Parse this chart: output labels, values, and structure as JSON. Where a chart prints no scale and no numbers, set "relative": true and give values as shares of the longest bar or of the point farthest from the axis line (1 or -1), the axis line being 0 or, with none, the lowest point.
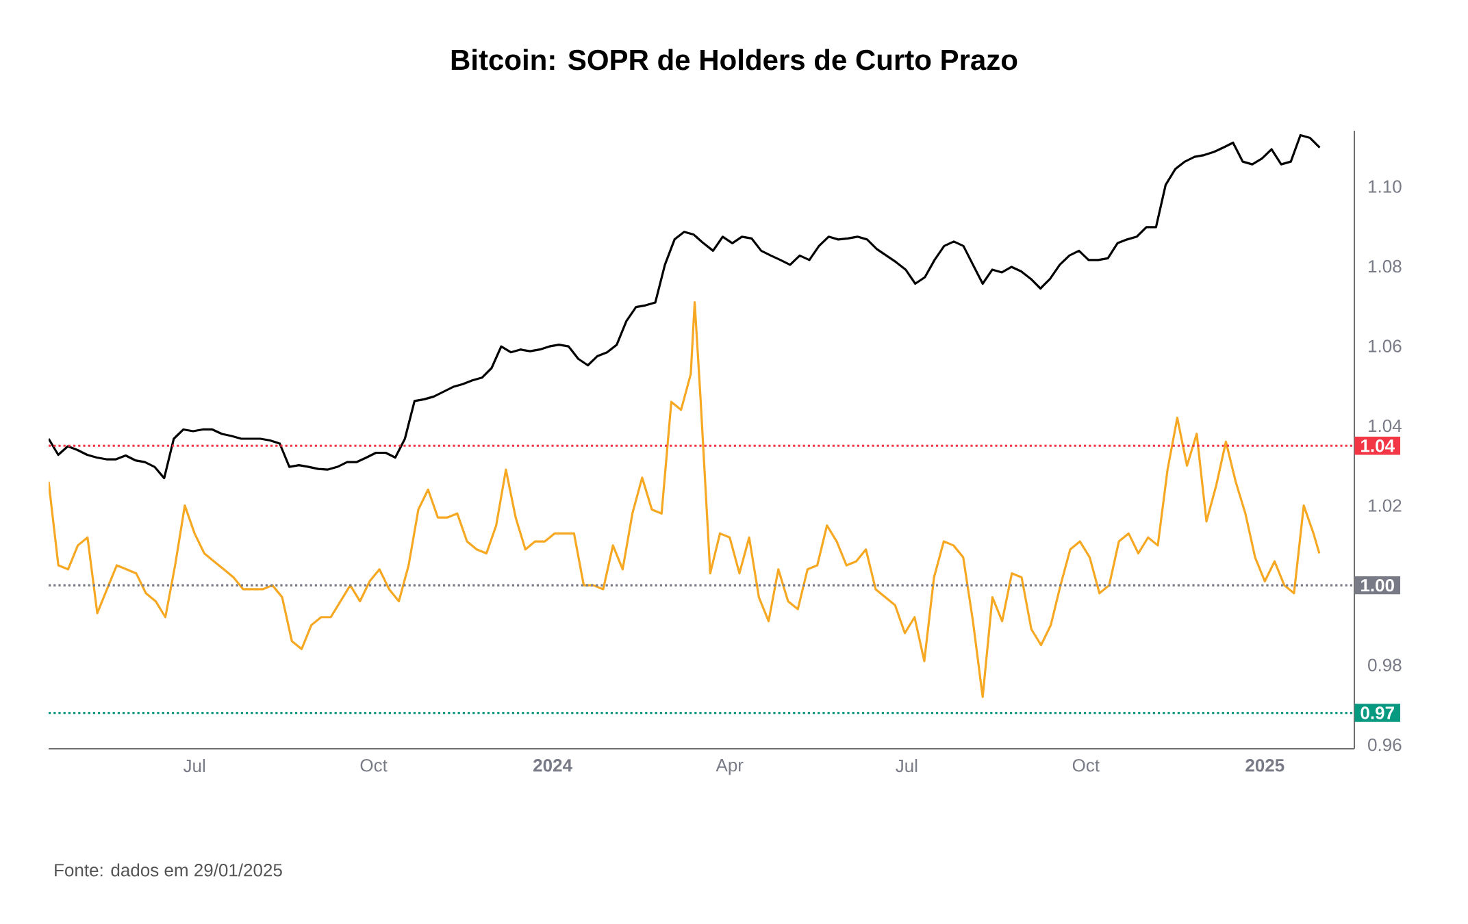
{
  "chart_data": [
    {
      "type": "line",
      "relative": true,
      "categories": [
        null,
        null,
        null,
        null,
        null,
        null,
        null,
        null,
        null,
        null,
        null,
        null,
        null,
        null,
        null,
        null,
        null,
        null,
        null,
        null,
        null,
        null,
        null,
        null,
        null,
        null,
        null,
        null,
        null,
        null,
        null,
        null,
        null,
        null,
        null,
        null,
        null,
        null,
        null,
        null,
        null,
        null,
        null,
        null,
        null,
        null,
        null,
        null,
        null,
        null,
        null,
        null,
        null,
        null,
        null,
        null,
        null,
        null,
        null,
        null,
        null,
        null,
        null,
        null,
        null,
        null,
        null,
        null,
        null,
        null,
        null,
        null,
        null,
        null,
        null,
        null,
        null,
        null,
        null,
        null,
        null,
        null,
        null,
        null,
        null,
        null,
        null,
        null,
        null,
        null,
        null,
        null,
        null,
        null,
        null,
        null,
        null,
        null,
        null,
        null,
        null,
        null,
        null,
        null,
        null,
        null,
        null,
        null,
        null,
        null,
        null,
        null,
        null,
        null,
        null,
        null,
        null,
        null,
        null,
        null,
        null,
        null,
        null,
        null,
        null,
        null,
        null,
        null,
        null,
        null,
        null,
        null,
        null
      ],
      "series": [
        {
          "color": "#000000",
          "values": [
            0.115,
            0.068,
            0.093,
            0.082,
            0.068,
            0.06,
            0.055,
            0.055,
            0.066,
            0.052,
            0.047,
            0.033,
            0,
            0.115,
            0.142,
            0.137,
            0.142,
            0.142,
            0.129,
            0.123,
            0.115,
            0.115,
            0.115,
            0.11,
            0.101,
            0.033,
            0.038,
            0.033,
            0.027,
            0.025,
            0.033,
            0.047,
            0.047,
            0.06,
            0.074,
            0.074,
            0.06,
            0.115,
            0.225,
            0.23,
            0.238,
            0.252,
            0.266,
            0.274,
            0.285,
            0.293,
            0.321,
            0.384,
            0.367,
            0.375,
            0.37,
            0.375,
            0.384,
            0.389,
            0.384,
            0.348,
            0.329,
            0.356,
            0.367,
            0.389,
            0.458,
            0.499,
            0.504,
            0.512,
            0.622,
            0.696,
            0.718,
            0.71,
            0.685,
            0.663,
            0.704,
            0.685,
            0.704,
            0.699,
            0.663,
            0.649,
            0.636,
            0.622,
            0.649,
            0.636,
            0.677,
            0.704,
            0.696,
            0.699,
            0.704,
            0.696,
            0.668,
            0.649,
            0.63,
            0.608,
            0.567,
            0.586,
            0.636,
            0.677,
            0.69,
            0.677,
            0.622,
            0.567,
            0.608,
            0.6,
            0.616,
            0.603,
            0.581,
            0.553,
            0.581,
            0.622,
            0.649,
            0.663,
            0.636,
            0.636,
            0.641,
            0.685,
            0.696,
            0.704,
            0.732,
            0.732,
            0.855,
            0.901,
            0.923,
            0.937,
            0.942,
            0.951,
            0.964,
            0.978,
            0.923,
            0.915,
            0.932,
            0.959,
            0.915,
            0.923,
            1,
            0.992,
            0.964
          ]
        }
      ]
    },
    {
      "type": "line",
      "title": "Bitcoin: SOPR de Holders de Curto Prazo",
      "annotations": [
        "Fonte: dados em 29/01/2025"
      ],
      "x": [
        "2023-04-17",
        "2023-04-22",
        "2023-04-27",
        "2023-05-02",
        "2023-05-07",
        "2023-05-12",
        "2023-05-17",
        "2023-05-22",
        "2023-05-27",
        "2023-06-01",
        "2023-06-06",
        "2023-06-11",
        "2023-06-16",
        "2023-06-21",
        "2023-06-26",
        "2023-07-01",
        "2023-07-06",
        "2023-07-11",
        "2023-07-16",
        "2023-07-21",
        "2023-07-26",
        "2023-07-31",
        "2023-08-05",
        "2023-08-10",
        "2023-08-15",
        "2023-08-20",
        "2023-08-25",
        "2023-08-30",
        "2023-09-04",
        "2023-09-09",
        "2023-09-14",
        "2023-09-19",
        "2023-09-24",
        "2023-09-29",
        "2023-10-04",
        "2023-10-09",
        "2023-10-14",
        "2023-10-19",
        "2023-10-24",
        "2023-10-29",
        "2023-11-03",
        "2023-11-08",
        "2023-11-13",
        "2023-11-18",
        "2023-11-23",
        "2023-11-28",
        "2023-12-03",
        "2023-12-08",
        "2023-12-13",
        "2023-12-18",
        "2023-12-23",
        "2023-12-28",
        "2024-01-02",
        "2024-01-07",
        "2024-01-12",
        "2024-01-17",
        "2024-01-22",
        "2024-01-27",
        "2024-02-01",
        "2024-02-06",
        "2024-02-11",
        "2024-02-16",
        "2024-02-21",
        "2024-02-26",
        "2024-03-02",
        "2024-03-07",
        "2024-03-12",
        "2024-03-14",
        "2024-03-17",
        "2024-03-22",
        "2024-03-27",
        "2024-04-01",
        "2024-04-06",
        "2024-04-11",
        "2024-04-16",
        "2024-04-21",
        "2024-04-26",
        "2024-05-01",
        "2024-05-06",
        "2024-05-11",
        "2024-05-16",
        "2024-05-21",
        "2024-05-26",
        "2024-05-31",
        "2024-06-05",
        "2024-06-10",
        "2024-06-15",
        "2024-06-20",
        "2024-06-25",
        "2024-06-30",
        "2024-07-05",
        "2024-07-10",
        "2024-07-15",
        "2024-07-20",
        "2024-07-25",
        "2024-07-30",
        "2024-08-04",
        "2024-08-09",
        "2024-08-14",
        "2024-08-19",
        "2024-08-24",
        "2024-08-29",
        "2024-09-03",
        "2024-09-08",
        "2024-09-13",
        "2024-09-18",
        "2024-09-23",
        "2024-09-28",
        "2024-10-03",
        "2024-10-08",
        "2024-10-13",
        "2024-10-18",
        "2024-10-23",
        "2024-10-28",
        "2024-11-02",
        "2024-11-07",
        "2024-11-12",
        "2024-11-17",
        "2024-11-22",
        "2024-11-27",
        "2024-12-02",
        "2024-12-07",
        "2024-12-12",
        "2024-12-17",
        "2024-12-22",
        "2024-12-27",
        "2025-01-01",
        "2025-01-06",
        "2025-01-11",
        "2025-01-16",
        "2025-01-21",
        "2025-01-26",
        "2025-01-29"
      ],
      "series": [
        {
          "color": "#f7a823",
          "values": [
            1.026,
            1.005,
            1.004,
            1.01,
            1.012,
            0.993,
            0.999,
            1.005,
            1.004,
            1.003,
            0.998,
            0.996,
            0.992,
            1.005,
            1.02,
            1.013,
            1.008,
            1.006,
            1.004,
            1.002,
            0.999,
            0.999,
            0.999,
            1.0,
            0.997,
            0.986,
            0.984,
            0.99,
            0.992,
            0.992,
            0.996,
            1.0,
            0.996,
            1.001,
            1.004,
            0.999,
            0.996,
            1.005,
            1.019,
            1.024,
            1.017,
            1.017,
            1.018,
            1.011,
            1.009,
            1.008,
            1.015,
            1.029,
            1.017,
            1.009,
            1.011,
            1.011,
            1.013,
            1.013,
            1.013,
            1.0,
            1.0,
            0.999,
            1.01,
            1.004,
            1.018,
            1.027,
            1.019,
            1.018,
            1.046,
            1.044,
            1.053,
            1.071,
            1.047,
            1.003,
            1.013,
            1.012,
            1.003,
            1.012,
            0.997,
            0.991,
            1.004,
            0.996,
            0.994,
            1.004,
            1.005,
            1.015,
            1.011,
            1.005,
            1.006,
            1.009,
            0.999,
            0.997,
            0.995,
            0.988,
            0.992,
            0.981,
            1.002,
            1.011,
            1.01,
            1.007,
            0.991,
            0.972,
            0.997,
            0.991,
            1.003,
            1.002,
            0.989,
            0.985,
            0.99,
            1.0,
            1.009,
            1.011,
            1.007,
            0.998,
            1.0,
            1.011,
            1.013,
            1.008,
            1.012,
            1.01,
            1.029,
            1.042,
            1.03,
            1.038,
            1.016,
            1.025,
            1.036,
            1.026,
            1.018,
            1.007,
            1.001,
            1.006,
            1.0,
            0.998,
            1.02,
            1.013,
            1.008
          ]
        }
      ],
      "xlim": [
        "2023-04-17",
        "2025-02-16"
      ],
      "xticks": [
        {
          "value": "2023-07-01",
          "label": "Jul"
        },
        {
          "value": "2023-10-01",
          "label": "Oct"
        },
        {
          "value": "2024-01-01",
          "label": "2024"
        },
        {
          "value": "2024-04-01",
          "label": "Apr"
        },
        {
          "value": "2024-07-01",
          "label": "Jul"
        },
        {
          "value": "2024-10-01",
          "label": "Oct"
        },
        {
          "value": "2025-01-01",
          "label": "2025"
        }
      ],
      "ylim": [
        0.959,
        1.114
      ],
      "yticks": [
        {
          "value": 0.96,
          "label": "0.96"
        },
        {
          "value": 0.98,
          "label": "0.98"
        },
        {
          "value": 1.02,
          "label": "1.02"
        },
        {
          "value": 1.04,
          "label": "1.04"
        },
        {
          "value": 1.06,
          "label": "1.06"
        },
        {
          "value": 1.08,
          "label": "1.08"
        },
        {
          "value": 1.1,
          "label": "1.10"
        }
      ],
      "ref_lines": [
        {
          "axis": "y",
          "value": 1.035,
          "label": "1.04",
          "color": "#f23645",
          "line_style": "dotted"
        },
        {
          "axis": "y",
          "value": 1.0,
          "label": "1.00",
          "color": "#787b86",
          "line_style": "dotted"
        },
        {
          "axis": "y",
          "value": 0.968,
          "label": "0.97",
          "color": "#089981",
          "line_style": "dotted"
        }
      ]
    }
  ]
}
